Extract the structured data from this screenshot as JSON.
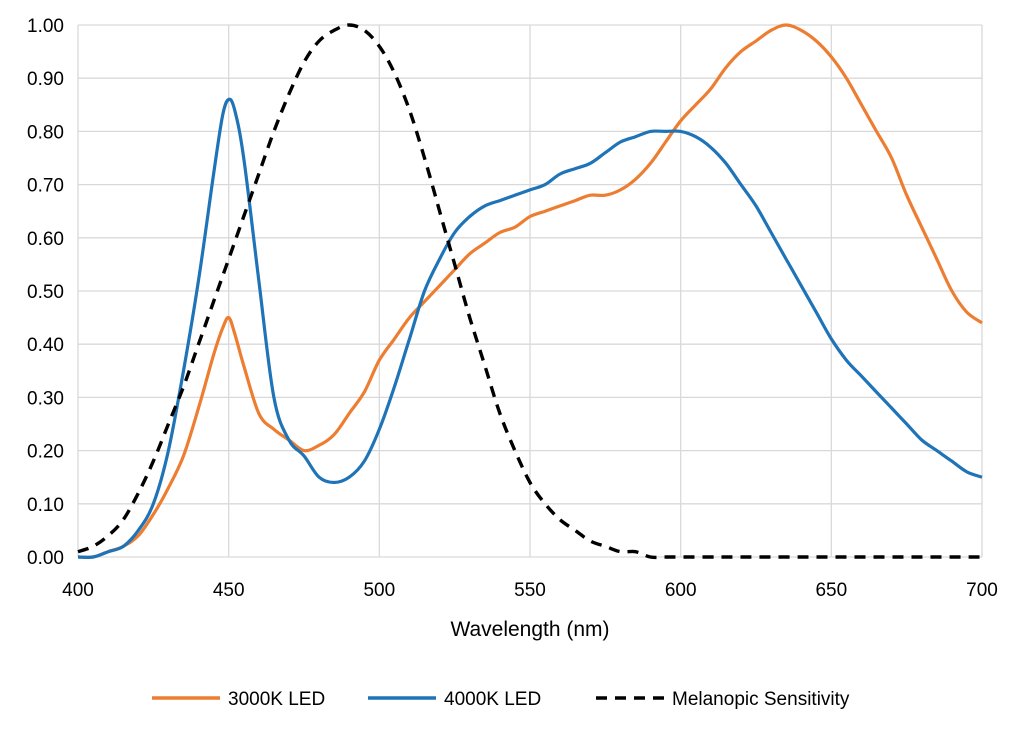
{
  "chart_data": {
    "type": "line",
    "title": "",
    "xlabel": "Wavelength (nm)",
    "ylabel": "",
    "xlim": [
      400,
      700
    ],
    "ylim": [
      0,
      1
    ],
    "grid": true,
    "legend_position": "bottom",
    "x_ticks": [
      "400",
      "450",
      "500",
      "550",
      "600",
      "650",
      "700"
    ],
    "y_ticks": [
      "0.00",
      "0.10",
      "0.20",
      "0.30",
      "0.40",
      "0.50",
      "0.60",
      "0.70",
      "0.80",
      "0.90",
      "1.00"
    ],
    "series": [
      {
        "name": "3000K LED",
        "color": "#ed7d31",
        "dash": "solid",
        "points": [
          [
            400,
            0.0
          ],
          [
            405,
            0.0
          ],
          [
            410,
            0.01
          ],
          [
            415,
            0.02
          ],
          [
            420,
            0.04
          ],
          [
            425,
            0.08
          ],
          [
            430,
            0.13
          ],
          [
            435,
            0.19
          ],
          [
            440,
            0.28
          ],
          [
            445,
            0.38
          ],
          [
            448,
            0.43
          ],
          [
            450,
            0.45
          ],
          [
            452,
            0.42
          ],
          [
            455,
            0.36
          ],
          [
            460,
            0.27
          ],
          [
            465,
            0.24
          ],
          [
            470,
            0.22
          ],
          [
            475,
            0.2
          ],
          [
            480,
            0.21
          ],
          [
            485,
            0.23
          ],
          [
            490,
            0.27
          ],
          [
            495,
            0.31
          ],
          [
            500,
            0.37
          ],
          [
            505,
            0.41
          ],
          [
            510,
            0.45
          ],
          [
            515,
            0.48
          ],
          [
            520,
            0.51
          ],
          [
            525,
            0.54
          ],
          [
            530,
            0.57
          ],
          [
            535,
            0.59
          ],
          [
            540,
            0.61
          ],
          [
            545,
            0.62
          ],
          [
            550,
            0.64
          ],
          [
            555,
            0.65
          ],
          [
            560,
            0.66
          ],
          [
            565,
            0.67
          ],
          [
            570,
            0.68
          ],
          [
            575,
            0.68
          ],
          [
            580,
            0.69
          ],
          [
            585,
            0.71
          ],
          [
            590,
            0.74
          ],
          [
            595,
            0.78
          ],
          [
            600,
            0.82
          ],
          [
            605,
            0.85
          ],
          [
            610,
            0.88
          ],
          [
            615,
            0.92
          ],
          [
            620,
            0.95
          ],
          [
            625,
            0.97
          ],
          [
            630,
            0.99
          ],
          [
            635,
            1.0
          ],
          [
            640,
            0.99
          ],
          [
            645,
            0.97
          ],
          [
            650,
            0.94
          ],
          [
            655,
            0.9
          ],
          [
            660,
            0.85
          ],
          [
            665,
            0.8
          ],
          [
            670,
            0.75
          ],
          [
            675,
            0.68
          ],
          [
            680,
            0.62
          ],
          [
            685,
            0.56
          ],
          [
            690,
            0.5
          ],
          [
            695,
            0.46
          ],
          [
            700,
            0.44
          ]
        ]
      },
      {
        "name": "4000K LED",
        "color": "#1f73b7",
        "dash": "solid",
        "points": [
          [
            400,
            0.0
          ],
          [
            405,
            0.0
          ],
          [
            410,
            0.01
          ],
          [
            415,
            0.02
          ],
          [
            420,
            0.05
          ],
          [
            425,
            0.1
          ],
          [
            430,
            0.2
          ],
          [
            435,
            0.35
          ],
          [
            440,
            0.52
          ],
          [
            445,
            0.72
          ],
          [
            448,
            0.83
          ],
          [
            450,
            0.86
          ],
          [
            452,
            0.84
          ],
          [
            455,
            0.75
          ],
          [
            460,
            0.52
          ],
          [
            465,
            0.3
          ],
          [
            470,
            0.22
          ],
          [
            475,
            0.19
          ],
          [
            480,
            0.15
          ],
          [
            485,
            0.14
          ],
          [
            490,
            0.15
          ],
          [
            495,
            0.18
          ],
          [
            500,
            0.24
          ],
          [
            505,
            0.32
          ],
          [
            510,
            0.41
          ],
          [
            515,
            0.5
          ],
          [
            520,
            0.56
          ],
          [
            525,
            0.61
          ],
          [
            530,
            0.64
          ],
          [
            535,
            0.66
          ],
          [
            540,
            0.67
          ],
          [
            545,
            0.68
          ],
          [
            550,
            0.69
          ],
          [
            555,
            0.7
          ],
          [
            560,
            0.72
          ],
          [
            565,
            0.73
          ],
          [
            570,
            0.74
          ],
          [
            575,
            0.76
          ],
          [
            580,
            0.78
          ],
          [
            585,
            0.79
          ],
          [
            590,
            0.8
          ],
          [
            595,
            0.8
          ],
          [
            600,
            0.8
          ],
          [
            605,
            0.79
          ],
          [
            610,
            0.77
          ],
          [
            615,
            0.74
          ],
          [
            620,
            0.7
          ],
          [
            625,
            0.66
          ],
          [
            630,
            0.61
          ],
          [
            635,
            0.56
          ],
          [
            640,
            0.51
          ],
          [
            645,
            0.46
          ],
          [
            650,
            0.41
          ],
          [
            655,
            0.37
          ],
          [
            660,
            0.34
          ],
          [
            665,
            0.31
          ],
          [
            670,
            0.28
          ],
          [
            675,
            0.25
          ],
          [
            680,
            0.22
          ],
          [
            685,
            0.2
          ],
          [
            690,
            0.18
          ],
          [
            695,
            0.16
          ],
          [
            700,
            0.15
          ]
        ]
      },
      {
        "name": "Melanopic Sensitivity",
        "color": "#000000",
        "dash": "dashed",
        "points": [
          [
            400,
            0.01
          ],
          [
            405,
            0.02
          ],
          [
            410,
            0.04
          ],
          [
            415,
            0.07
          ],
          [
            420,
            0.12
          ],
          [
            425,
            0.18
          ],
          [
            430,
            0.25
          ],
          [
            435,
            0.32
          ],
          [
            440,
            0.4
          ],
          [
            445,
            0.48
          ],
          [
            450,
            0.56
          ],
          [
            455,
            0.64
          ],
          [
            460,
            0.72
          ],
          [
            465,
            0.8
          ],
          [
            470,
            0.87
          ],
          [
            475,
            0.93
          ],
          [
            480,
            0.97
          ],
          [
            485,
            0.99
          ],
          [
            490,
            1.0
          ],
          [
            495,
            0.99
          ],
          [
            500,
            0.96
          ],
          [
            505,
            0.91
          ],
          [
            510,
            0.84
          ],
          [
            515,
            0.75
          ],
          [
            520,
            0.65
          ],
          [
            525,
            0.55
          ],
          [
            530,
            0.45
          ],
          [
            535,
            0.36
          ],
          [
            540,
            0.27
          ],
          [
            545,
            0.2
          ],
          [
            550,
            0.14
          ],
          [
            555,
            0.1
          ],
          [
            560,
            0.07
          ],
          [
            565,
            0.05
          ],
          [
            570,
            0.03
          ],
          [
            575,
            0.02
          ],
          [
            580,
            0.01
          ],
          [
            585,
            0.01
          ],
          [
            590,
            0.0
          ],
          [
            595,
            0.0
          ],
          [
            600,
            0.0
          ],
          [
            610,
            0.0
          ],
          [
            620,
            0.0
          ],
          [
            640,
            0.0
          ],
          [
            660,
            0.0
          ],
          [
            680,
            0.0
          ],
          [
            700,
            0.0
          ]
        ]
      }
    ]
  }
}
